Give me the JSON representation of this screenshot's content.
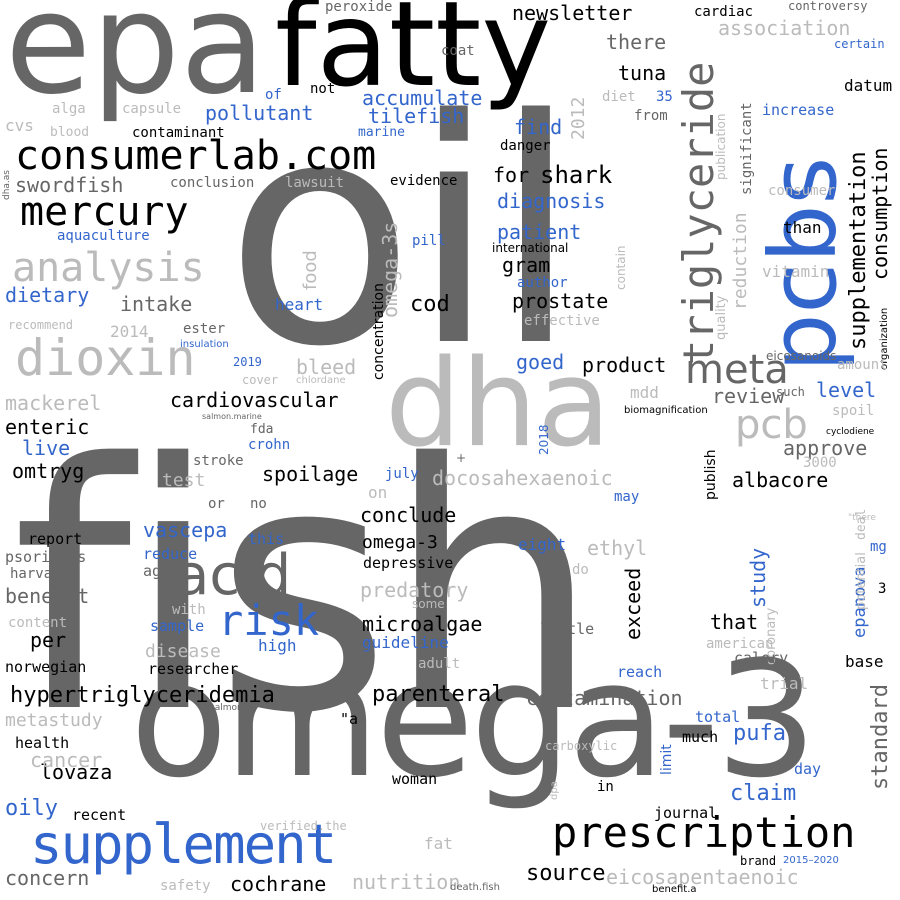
{
  "word_cloud": {
    "colors": {
      "background": "#ffffff",
      "black": "#000000",
      "dark_gray": "#666666",
      "light_gray": "#bbbbbb",
      "blue": "#3366cc"
    },
    "words": {
      "fish": "fish",
      "oil": "oil",
      "omega3": "omega-3",
      "epa": "epa",
      "fatty": "fatty",
      "dha": "dha",
      "pcbs": "pcbs",
      "supplement": "supplement",
      "prescription": "prescription",
      "consumerlab": "consumerlab.com",
      "acid": "acid",
      "dioxin": "dioxin",
      "triglyceride": "triglyceride",
      "mercury": "mercury",
      "analysis": "analysis",
      "risk": "risk",
      "meta": "meta",
      "pcb": "pcb",
      "supplementation": "supplementation",
      "consumption": "consumption",
      "hypertriglyceridemia": "hypertriglyceridemia",
      "cardiovascular": "cardiovascular",
      "standard": "standard",
      "pollutant": "pollutant",
      "accumulate": "accumulate",
      "tilefish": "tilefish",
      "newsletter": "newsletter",
      "association": "association",
      "tuna": "tuna",
      "there": "there",
      "swordfish": "swordfish",
      "shark": "shark",
      "for": "for",
      "diagnosis": "diagnosis",
      "patient": "patient",
      "gram": "gram",
      "prostate": "prostate",
      "cod": "cod",
      "intake": "intake",
      "dietary": "dietary",
      "mackerel": "mackerel",
      "enteric": "enteric",
      "live": "live",
      "omtryg": "omtryg",
      "spoilage": "spoilage",
      "docosahexaenoic": "docosahexaenoic",
      "conclude": "conclude",
      "omega3_small": "omega-3",
      "vascepa": "vascepa",
      "ethyl": "ethyl",
      "predatory": "predatory",
      "microalgae": "microalgae",
      "benefit": "benefit",
      "exceed": "exceed",
      "study": "study",
      "epanova": "epanova",
      "that": "that",
      "per": "per",
      "guideline": "guideline",
      "parenteral": "parenteral",
      "contamination": "contamination",
      "lovaza": "lovaza",
      "pufa": "pufa",
      "claim": "claim",
      "cochrane": "cochrane",
      "source": "source",
      "eicosapentaenoic": "eicosapentaenoic",
      "nutrition": "nutrition",
      "concern": "concern",
      "cancer": "cancer",
      "oily": "oily",
      "metastudy": "metastudy",
      "product": "product",
      "review": "review",
      "level": "level",
      "albacore": "albacore",
      "approve": "approve",
      "goed": "goed",
      "find": "find",
      "bleed": "bleed",
      "food": "food",
      "heart": "heart",
      "reduction": "reduction",
      "quality": "quality",
      "increase": "increase",
      "datum": "datum",
      "than": "than",
      "vitamin": "vitamin",
      "consumer": "consumer",
      "significant": "significant",
      "publication": "publication",
      "cardiac": "cardiac",
      "controversy": "controversy",
      "certain": "certain",
      "peroxide": "peroxide",
      "coat": "coat",
      "not": "not",
      "alga": "alga",
      "capsule": "capsule",
      "cvs": "cvs",
      "blood": "blood",
      "contaminant": "contaminant",
      "marine": "marine",
      "danger": "danger",
      "evidence": "evidence",
      "conclusion": "conclusion",
      "lawsuit": "lawsuit",
      "aquaculture": "aquaculture",
      "omega3s": "omega-3s",
      "concentration": "concentration",
      "pill": "pill",
      "international": "international",
      "author": "author",
      "effective": "effective",
      "contain": "contain",
      "recommend": "recommend",
      "year_2014": "2014",
      "ester": "ester",
      "insulation": "insulation",
      "year_2019": "2019",
      "cover": "cover",
      "chlordane": "chlordane",
      "salmon_marine": "salmon.marine",
      "fda": "fda",
      "crohn": "crohn",
      "stroke": "stroke",
      "test": "test",
      "or": "or",
      "no": "no",
      "on": "on",
      "july": "july",
      "year_2018": "2018",
      "plus": "+",
      "may": "may",
      "publish": "publish",
      "mdd": "mdd",
      "biomagnification": "biomagnification",
      "spoil": "spoil",
      "cyclodiene": "cyclodiene",
      "such": "such",
      "amount": "amount",
      "eicosanoids": "eicosanoids",
      "organization": "organization",
      "n3000": "3000",
      "deal": "deal",
      "quote_there": "\"there",
      "mg": "mg",
      "n3": "3",
      "potential": "potential",
      "coronary": "coronary",
      "american": "american",
      "calory": "calory",
      "trial": "trial",
      "base": "base",
      "reach": "reach",
      "little": "little",
      "do": "do",
      "some": "some",
      "eight": "eight",
      "depressive": "depressive",
      "report": "report",
      "psoriasis": "psoriasis",
      "harvard": "harvard",
      "reduce": "reduce",
      "age": "age",
      "this": "this",
      "with": "with",
      "sample": "sample",
      "high": "high",
      "content": "content",
      "disease": "disease",
      "norwegian": "norwegian",
      "researcher": "researcher",
      "salmonid": "salmonid",
      "adult": "adult",
      "quote_a": "\"a",
      "health": "health",
      "limit": "limit",
      "total": "total",
      "much": "much",
      "day": "day",
      "carboxylic": "carboxylic",
      "woman": "woman",
      "in": "in",
      "dpa": "dpa",
      "recent": "recent",
      "journal": "journal",
      "verified_the": "verified.the",
      "fat": "fat",
      "brand": "brand",
      "years_2015_2020": "2015–2020",
      "safety": "safety",
      "death_fish": "death.fish",
      "benefit_a": "benefit.a",
      "dha_as": "dha.as",
      "of": "of",
      "diet": "diet",
      "n35": "35",
      "from": "from",
      "year_2012": "2012"
    }
  }
}
